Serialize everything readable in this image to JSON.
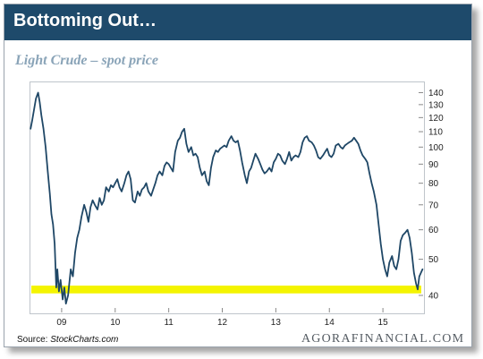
{
  "header": {
    "title": "Bottoming Out…"
  },
  "footer": {
    "source_label": "Source: ",
    "source_name": "StockCharts.com",
    "logo": "AGORAFINANCIAL.COM"
  },
  "chart_data": {
    "type": "line",
    "title": "Light Crude – spot price",
    "xlabel": "",
    "ylabel": "",
    "y_scale": "log",
    "ylim": [
      36,
      150
    ],
    "xlim": [
      2008.4,
      2015.75
    ],
    "y_ticks": [
      40,
      50,
      60,
      70,
      80,
      90,
      100,
      110,
      120,
      130,
      140
    ],
    "x_ticks": [
      {
        "value": 2009.0,
        "label": "09"
      },
      {
        "value": 2010.0,
        "label": "10"
      },
      {
        "value": 2011.0,
        "label": "11"
      },
      {
        "value": 2012.0,
        "label": "12"
      },
      {
        "value": 2013.0,
        "label": "13"
      },
      {
        "value": 2014.0,
        "label": "14"
      },
      {
        "value": 2015.0,
        "label": "15"
      }
    ],
    "support_band": {
      "low": 40.5,
      "high": 42.5,
      "color": "#f4f400"
    },
    "line_color": "#1f4766",
    "series": [
      {
        "values": [
          [
            2008.42,
            112
          ],
          [
            2008.45,
            118
          ],
          [
            2008.48,
            125
          ],
          [
            2008.52,
            135
          ],
          [
            2008.56,
            140
          ],
          [
            2008.59,
            132
          ],
          [
            2008.62,
            122
          ],
          [
            2008.66,
            112
          ],
          [
            2008.7,
            100
          ],
          [
            2008.74,
            86
          ],
          [
            2008.78,
            75
          ],
          [
            2008.81,
            66
          ],
          [
            2008.84,
            62
          ],
          [
            2008.87,
            55
          ],
          [
            2008.9,
            42
          ],
          [
            2008.92,
            47
          ],
          [
            2008.95,
            41
          ],
          [
            2008.98,
            44
          ],
          [
            2009.02,
            39
          ],
          [
            2009.05,
            42
          ],
          [
            2009.08,
            38
          ],
          [
            2009.12,
            40
          ],
          [
            2009.17,
            47
          ],
          [
            2009.21,
            45
          ],
          [
            2009.25,
            52
          ],
          [
            2009.29,
            57
          ],
          [
            2009.33,
            60
          ],
          [
            2009.37,
            65
          ],
          [
            2009.42,
            70
          ],
          [
            2009.46,
            67
          ],
          [
            2009.5,
            63
          ],
          [
            2009.54,
            69
          ],
          [
            2009.58,
            72
          ],
          [
            2009.62,
            70
          ],
          [
            2009.67,
            68
          ],
          [
            2009.71,
            73
          ],
          [
            2009.75,
            70
          ],
          [
            2009.79,
            72
          ],
          [
            2009.83,
            78
          ],
          [
            2009.88,
            76
          ],
          [
            2009.92,
            79
          ],
          [
            2009.96,
            78
          ],
          [
            2010.0,
            80
          ],
          [
            2010.04,
            82
          ],
          [
            2010.08,
            78
          ],
          [
            2010.12,
            76
          ],
          [
            2010.17,
            80
          ],
          [
            2010.21,
            84
          ],
          [
            2010.25,
            86
          ],
          [
            2010.29,
            82
          ],
          [
            2010.33,
            72
          ],
          [
            2010.37,
            71
          ],
          [
            2010.42,
            76
          ],
          [
            2010.46,
            74
          ],
          [
            2010.5,
            77
          ],
          [
            2010.54,
            78
          ],
          [
            2010.58,
            80
          ],
          [
            2010.62,
            76
          ],
          [
            2010.67,
            74
          ],
          [
            2010.71,
            77
          ],
          [
            2010.75,
            80
          ],
          [
            2010.79,
            84
          ],
          [
            2010.83,
            86
          ],
          [
            2010.88,
            84
          ],
          [
            2010.92,
            89
          ],
          [
            2010.96,
            91
          ],
          [
            2011.0,
            90
          ],
          [
            2011.04,
            88
          ],
          [
            2011.08,
            86
          ],
          [
            2011.12,
            97
          ],
          [
            2011.17,
            104
          ],
          [
            2011.21,
            106
          ],
          [
            2011.25,
            110
          ],
          [
            2011.29,
            112
          ],
          [
            2011.33,
            102
          ],
          [
            2011.37,
            97
          ],
          [
            2011.42,
            100
          ],
          [
            2011.46,
            95
          ],
          [
            2011.5,
            96
          ],
          [
            2011.54,
            94
          ],
          [
            2011.58,
            88
          ],
          [
            2011.62,
            84
          ],
          [
            2011.67,
            86
          ],
          [
            2011.71,
            81
          ],
          [
            2011.75,
            79
          ],
          [
            2011.79,
            88
          ],
          [
            2011.83,
            94
          ],
          [
            2011.88,
            98
          ],
          [
            2011.92,
            97
          ],
          [
            2011.96,
            99
          ],
          [
            2012.0,
            100
          ],
          [
            2012.04,
            101
          ],
          [
            2012.08,
            100
          ],
          [
            2012.12,
            104
          ],
          [
            2012.17,
            107
          ],
          [
            2012.21,
            104
          ],
          [
            2012.25,
            103
          ],
          [
            2012.29,
            104
          ],
          [
            2012.33,
            98
          ],
          [
            2012.37,
            91
          ],
          [
            2012.42,
            84
          ],
          [
            2012.46,
            80
          ],
          [
            2012.5,
            86
          ],
          [
            2012.54,
            88
          ],
          [
            2012.58,
            92
          ],
          [
            2012.62,
            96
          ],
          [
            2012.67,
            93
          ],
          [
            2012.71,
            90
          ],
          [
            2012.75,
            87
          ],
          [
            2012.79,
            85
          ],
          [
            2012.83,
            86
          ],
          [
            2012.88,
            88
          ],
          [
            2012.92,
            86
          ],
          [
            2012.96,
            91
          ],
          [
            2013.0,
            93
          ],
          [
            2013.04,
            96
          ],
          [
            2013.08,
            95
          ],
          [
            2013.12,
            92
          ],
          [
            2013.17,
            90
          ],
          [
            2013.21,
            93
          ],
          [
            2013.25,
            97
          ],
          [
            2013.29,
            92
          ],
          [
            2013.33,
            94
          ],
          [
            2013.37,
            95
          ],
          [
            2013.42,
            94
          ],
          [
            2013.46,
            97
          ],
          [
            2013.5,
            103
          ],
          [
            2013.54,
            106
          ],
          [
            2013.58,
            107
          ],
          [
            2013.62,
            104
          ],
          [
            2013.67,
            103
          ],
          [
            2013.71,
            101
          ],
          [
            2013.75,
            98
          ],
          [
            2013.79,
            94
          ],
          [
            2013.83,
            93
          ],
          [
            2013.88,
            95
          ],
          [
            2013.92,
            97
          ],
          [
            2013.96,
            99
          ],
          [
            2014.0,
            95
          ],
          [
            2014.04,
            94
          ],
          [
            2014.08,
            96
          ],
          [
            2014.12,
            101
          ],
          [
            2014.17,
            102
          ],
          [
            2014.21,
            100
          ],
          [
            2014.25,
            99
          ],
          [
            2014.29,
            101
          ],
          [
            2014.33,
            102
          ],
          [
            2014.37,
            103
          ],
          [
            2014.42,
            104
          ],
          [
            2014.46,
            106
          ],
          [
            2014.5,
            104
          ],
          [
            2014.54,
            102
          ],
          [
            2014.58,
            98
          ],
          [
            2014.62,
            95
          ],
          [
            2014.67,
            93
          ],
          [
            2014.71,
            91
          ],
          [
            2014.75,
            85
          ],
          [
            2014.79,
            80
          ],
          [
            2014.83,
            76
          ],
          [
            2014.88,
            70
          ],
          [
            2014.92,
            62
          ],
          [
            2014.96,
            55
          ],
          [
            2015.0,
            50
          ],
          [
            2015.04,
            47
          ],
          [
            2015.08,
            45
          ],
          [
            2015.12,
            49
          ],
          [
            2015.17,
            51
          ],
          [
            2015.21,
            48
          ],
          [
            2015.25,
            47
          ],
          [
            2015.29,
            50
          ],
          [
            2015.33,
            56
          ],
          [
            2015.37,
            58
          ],
          [
            2015.42,
            59
          ],
          [
            2015.46,
            60
          ],
          [
            2015.5,
            57
          ],
          [
            2015.54,
            52
          ],
          [
            2015.58,
            46
          ],
          [
            2015.62,
            43
          ],
          [
            2015.65,
            41.5
          ],
          [
            2015.68,
            45
          ],
          [
            2015.71,
            46
          ],
          [
            2015.74,
            47
          ]
        ]
      }
    ]
  }
}
